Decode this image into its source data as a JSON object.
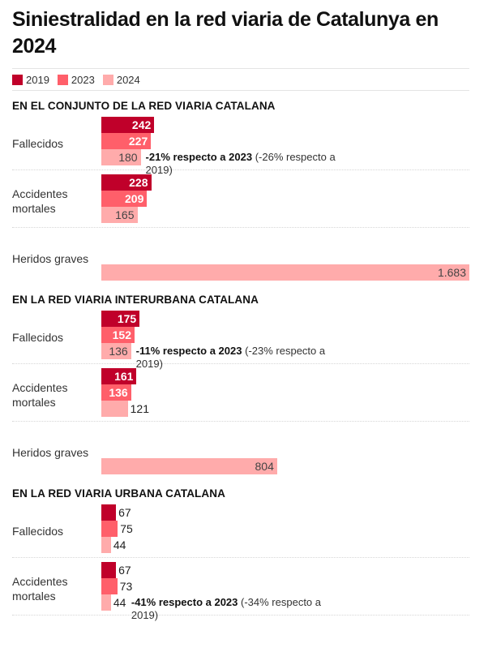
{
  "title": "Siniestralidad en la red viaria de Catalunya en 2024",
  "legend": [
    {
      "label": "2019",
      "color": "#c0002a"
    },
    {
      "label": "2023",
      "color": "#ff5f6a"
    },
    {
      "label": "2024",
      "color": "#ffabab"
    }
  ],
  "chart_data": {
    "type": "bar",
    "orientation": "horizontal",
    "series": [
      "2019",
      "2023",
      "2024"
    ],
    "xlim": [
      0,
      1683
    ],
    "sections": [
      {
        "title": "EN EL CONJUNTO DE LA RED VIARIA CATALANA",
        "rows": [
          {
            "label": "Fallecidos",
            "values": [
              242,
              227,
              180
            ],
            "value_labels": [
              "242",
              "227",
              "180"
            ],
            "annotation": {
              "bold": "-21% respecto a 2023",
              "normal": "(-26% respecto a 2019)"
            }
          },
          {
            "label": "Accidentes mortales",
            "values": [
              228,
              209,
              165
            ],
            "value_labels": [
              "228",
              "209",
              "165"
            ]
          },
          {
            "label": "Heridos graves",
            "values": [
              null,
              null,
              1683
            ],
            "value_labels": [
              null,
              null,
              "1.683"
            ]
          }
        ]
      },
      {
        "title": "EN LA RED VIARIA INTERURBANA CATALANA",
        "rows": [
          {
            "label": "Fallecidos",
            "values": [
              175,
              152,
              136
            ],
            "value_labels": [
              "175",
              "152",
              "136"
            ],
            "annotation": {
              "bold": "-11% respecto a 2023",
              "normal": "(-23% respecto a 2019)"
            }
          },
          {
            "label": "Accidentes mortales",
            "values": [
              161,
              136,
              121
            ],
            "value_labels": [
              "161",
              "136",
              "121"
            ]
          },
          {
            "label": "Heridos graves",
            "values": [
              null,
              null,
              804
            ],
            "value_labels": [
              null,
              null,
              "804"
            ]
          }
        ]
      },
      {
        "title": "EN LA RED VIARIA URBANA CATALANA",
        "rows": [
          {
            "label": "Fallecidos",
            "values": [
              67,
              75,
              44
            ],
            "value_labels": [
              "67",
              "75",
              "44"
            ]
          },
          {
            "label": "Accidentes mortales",
            "values": [
              67,
              73,
              44
            ],
            "value_labels": [
              "67",
              "73",
              "44"
            ],
            "annotation": {
              "bold": "-41% respecto a 2023",
              "normal": "(-34% respecto a 2019)"
            }
          }
        ]
      }
    ]
  }
}
